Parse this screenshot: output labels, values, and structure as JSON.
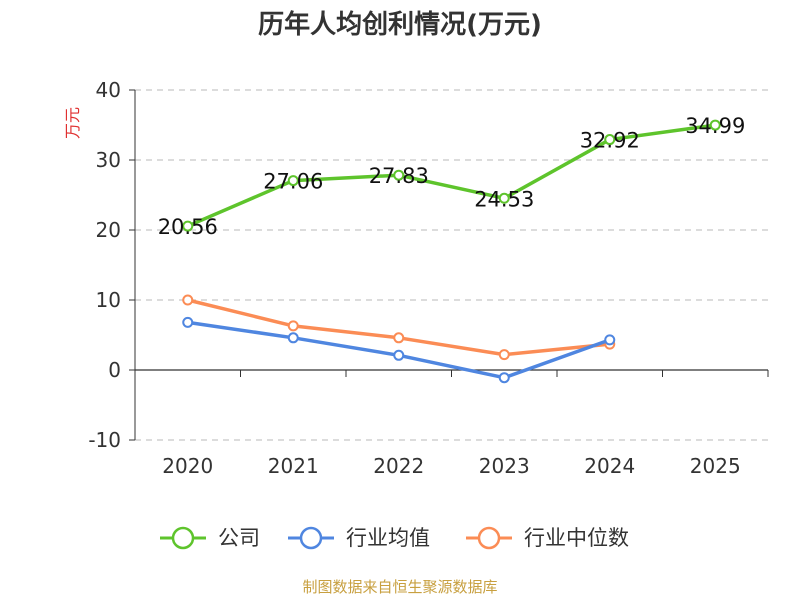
{
  "chart_data": {
    "type": "line",
    "title": "历年人均创利情况(万元)",
    "ylabel": "万元",
    "xlabel": "",
    "categories": [
      "2020",
      "2021",
      "2022",
      "2023",
      "2024",
      "2025"
    ],
    "yticks": [
      "-10",
      "0",
      "10",
      "20",
      "30",
      "40"
    ],
    "ylim": [
      -10,
      40
    ],
    "grid": true,
    "legend_position": "bottom",
    "series": [
      {
        "name": "公司",
        "color": "#5ec42c",
        "values": [
          20.56,
          27.06,
          27.83,
          24.53,
          32.92,
          34.99
        ],
        "labels": [
          "20.56",
          "27.06",
          "27.83",
          "24.53",
          "32.92",
          "34.99"
        ]
      },
      {
        "name": "行业均值",
        "color": "#4f86e0",
        "values": [
          6.8,
          4.6,
          2.1,
          -1.1,
          4.3,
          null
        ]
      },
      {
        "name": "行业中位数",
        "color": "#fb8c55",
        "values": [
          10.0,
          6.3,
          4.6,
          2.2,
          3.7,
          null
        ]
      }
    ]
  },
  "source_text": "制图数据来自恒生聚源数据库"
}
